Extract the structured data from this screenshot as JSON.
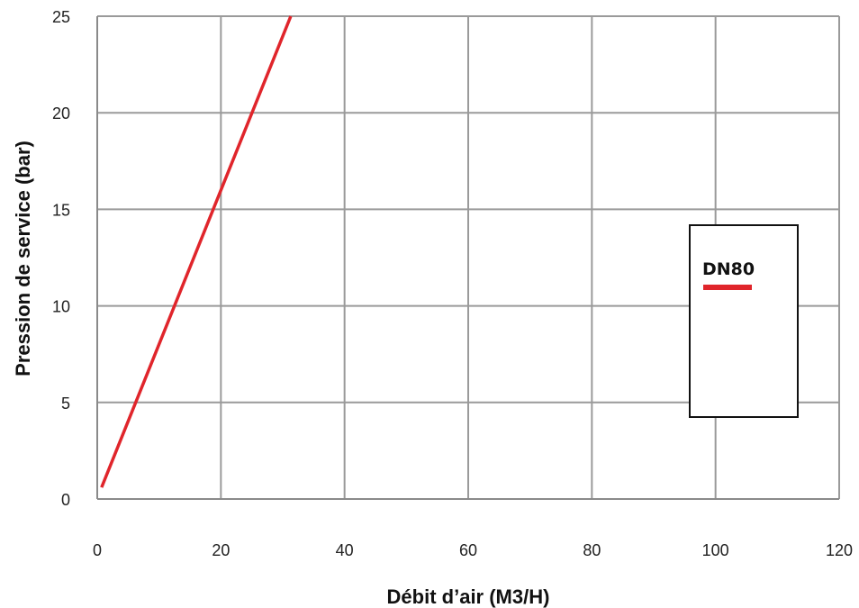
{
  "chart_data": {
    "type": "line",
    "title": "",
    "xlabel": "Débit d’air (M3/H)",
    "ylabel": "Pression de service (bar)",
    "xlim": [
      0,
      120
    ],
    "ylim": [
      0,
      25
    ],
    "xticks": [
      "0",
      "20",
      "40",
      "60",
      "80",
      "100",
      "120"
    ],
    "yticks": [
      "0",
      "5",
      "10",
      "15",
      "20",
      "25"
    ],
    "grid": true,
    "legend_position": "right",
    "series": [
      {
        "name": "DN80",
        "color": "#e0252b",
        "x": [
          0.7,
          31.3
        ],
        "y": [
          0.6,
          25
        ]
      }
    ]
  }
}
